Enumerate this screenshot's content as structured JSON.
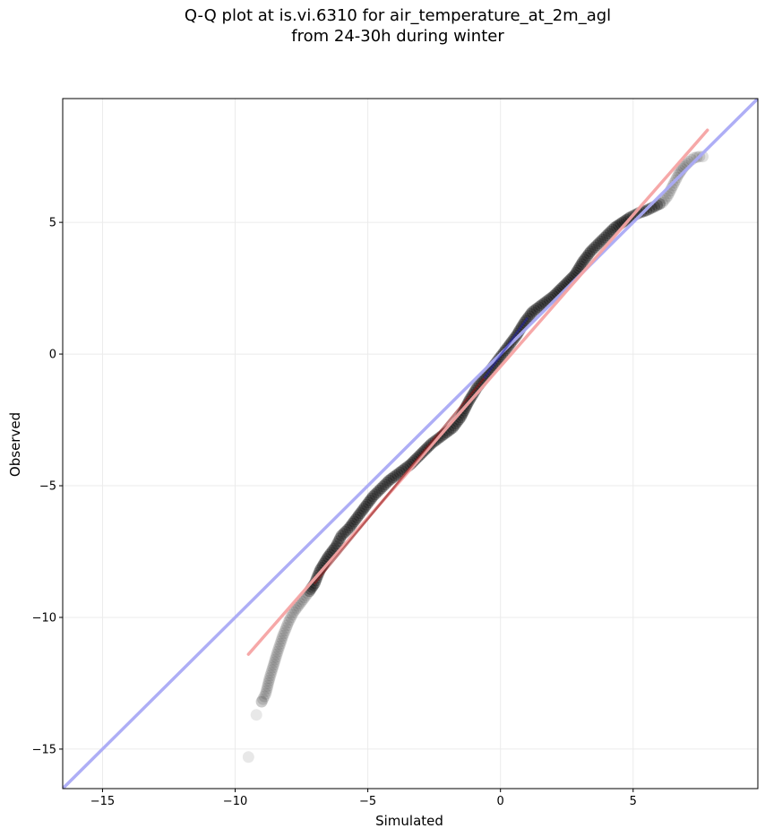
{
  "chart_data": {
    "type": "scatter",
    "title_line1": "Q-Q plot at is.vi.6310 for air_temperature_at_2m_agl",
    "title_line2": "from 24-30h during winter",
    "xlabel": "Simulated",
    "ylabel": "Observed",
    "xlim": [
      -16.5,
      9.7
    ],
    "ylim": [
      -16.5,
      9.7
    ],
    "x_ticks": [
      -15,
      -10,
      -5,
      0,
      5
    ],
    "y_ticks": [
      -15,
      -10,
      -5,
      0,
      5
    ],
    "x_tick_labels": [
      "−15",
      "−10",
      "−5",
      "0",
      "5"
    ],
    "y_tick_labels": [
      "−15",
      "−10",
      "−5",
      "0",
      "5"
    ],
    "grid": true,
    "quantile_curve": [
      [
        -9.5,
        -15.3
      ],
      [
        -9.2,
        -13.7
      ],
      [
        -9.0,
        -13.2
      ],
      [
        -8.85,
        -12.9
      ],
      [
        -8.7,
        -12.3
      ],
      [
        -8.55,
        -11.8
      ],
      [
        -8.4,
        -11.3
      ],
      [
        -8.2,
        -10.7
      ],
      [
        -8.0,
        -10.2
      ],
      [
        -7.8,
        -9.8
      ],
      [
        -7.5,
        -9.4
      ],
      [
        -7.2,
        -9.0
      ],
      [
        -7.0,
        -8.7
      ],
      [
        -6.8,
        -8.2
      ],
      [
        -6.5,
        -7.7
      ],
      [
        -6.2,
        -7.3
      ],
      [
        -6.0,
        -6.9
      ],
      [
        -5.7,
        -6.6
      ],
      [
        -5.4,
        -6.2
      ],
      [
        -5.1,
        -5.8
      ],
      [
        -4.8,
        -5.4
      ],
      [
        -4.5,
        -5.1
      ],
      [
        -4.2,
        -4.8
      ],
      [
        -3.8,
        -4.5
      ],
      [
        -3.4,
        -4.2
      ],
      [
        -3.0,
        -3.8
      ],
      [
        -2.6,
        -3.4
      ],
      [
        -2.2,
        -3.1
      ],
      [
        -1.8,
        -2.8
      ],
      [
        -1.5,
        -2.4
      ],
      [
        -1.2,
        -1.8
      ],
      [
        -0.9,
        -1.3
      ],
      [
        -0.6,
        -0.9
      ],
      [
        -0.3,
        -0.5
      ],
      [
        0.0,
        -0.1
      ],
      [
        0.3,
        0.3
      ],
      [
        0.6,
        0.7
      ],
      [
        0.9,
        1.2
      ],
      [
        1.2,
        1.6
      ],
      [
        1.6,
        1.9
      ],
      [
        2.0,
        2.2
      ],
      [
        2.4,
        2.6
      ],
      [
        2.8,
        3.0
      ],
      [
        3.1,
        3.5
      ],
      [
        3.4,
        3.9
      ],
      [
        3.7,
        4.2
      ],
      [
        4.0,
        4.5
      ],
      [
        4.3,
        4.8
      ],
      [
        4.6,
        5.0
      ],
      [
        4.9,
        5.2
      ],
      [
        5.2,
        5.35
      ],
      [
        5.5,
        5.45
      ],
      [
        5.8,
        5.6
      ],
      [
        6.1,
        5.75
      ],
      [
        6.3,
        6.0
      ],
      [
        6.5,
        6.4
      ],
      [
        6.7,
        6.8
      ],
      [
        6.9,
        7.1
      ],
      [
        7.1,
        7.3
      ],
      [
        7.3,
        7.45
      ],
      [
        7.5,
        7.5
      ],
      [
        7.75,
        7.5
      ]
    ],
    "series": [
      {
        "name": "",
        "values": [
          [
            -9.5,
            -15.3
          ],
          [
            -9.2,
            -13.7
          ],
          [
            -9.0,
            -13.2
          ]
        ],
        "color": "#000000"
      },
      {
        "name": "",
        "values": [
          [
            -16.5,
            -16.5
          ],
          [
            9.7,
            9.7
          ]
        ],
        "color": "#aaaaf5"
      },
      {
        "name": "",
        "values": [
          [
            -9.5,
            -11.4
          ],
          [
            7.8,
            8.5
          ]
        ],
        "color": "#f5a3a3"
      },
      {
        "name": "",
        "values": [
          [
            -7.0,
            -8.7
          ],
          [
            -0.6,
            -0.9
          ]
        ],
        "color": "#8c1414"
      },
      {
        "name": "",
        "values": [
          [
            -0.6,
            -0.9
          ],
          [
            1.0,
            1.35
          ]
        ],
        "color": "#2222a8"
      }
    ],
    "colors": {
      "points": "#000000",
      "identity_line": "#aaaaf5",
      "fit_line": "#f5a3a3",
      "fit_segment_dark": "#8c1414",
      "identity_segment_dark": "#2222a8",
      "grid": "#ebebeb"
    }
  }
}
